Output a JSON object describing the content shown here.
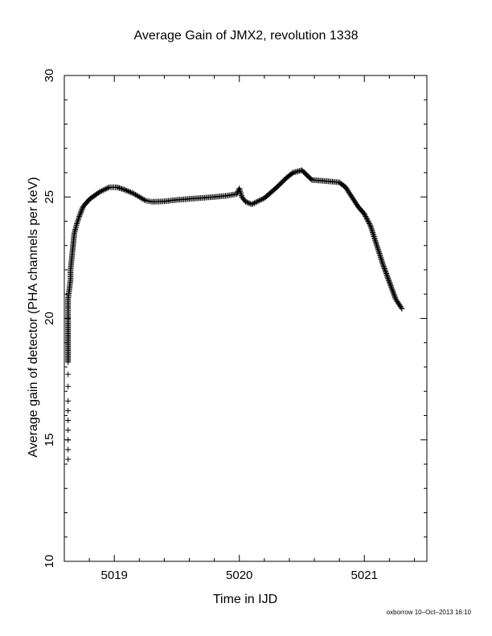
{
  "footer": "oxborrow 10–Oct–2013 16:10",
  "chart_data": {
    "type": "scatter",
    "title": "Average Gain of JMX2, revolution 1338",
    "xlabel": "Time in IJD",
    "ylabel": "Average gain of detector (PHA channels per keV)",
    "xlim": [
      5018.6,
      5021.5
    ],
    "ylim": [
      10,
      30
    ],
    "xticks": [
      5019,
      5020,
      5021
    ],
    "yticks": [
      10,
      15,
      20,
      25,
      30
    ],
    "x_tick_labels": [
      "5019",
      "5020",
      "5021"
    ],
    "y_tick_labels": [
      "10",
      "15",
      "20",
      "25",
      "30"
    ],
    "marker": "plus",
    "color": "#000000",
    "grid": false,
    "series": [
      {
        "x": [
          5018.63,
          5018.63,
          5018.63,
          5018.63,
          5018.63,
          5018.63,
          5018.63,
          5018.63,
          5018.63,
          5018.63,
          5018.63,
          5018.63,
          5018.63,
          5018.63,
          5018.64,
          5018.65,
          5018.65,
          5018.66,
          5018.67,
          5018.68,
          5018.7,
          5018.72,
          5018.75,
          5018.8,
          5018.88,
          5018.96,
          5019.02,
          5019.08,
          5019.15,
          5019.2,
          5019.25,
          5019.3,
          5019.4,
          5019.5,
          5019.6,
          5019.7,
          5019.8,
          5019.9,
          5019.98,
          5020.0,
          5020.02,
          5020.05,
          5020.1,
          5020.2,
          5020.3,
          5020.38,
          5020.43,
          5020.5,
          5020.58,
          5020.7,
          5020.8,
          5020.85,
          5020.9,
          5020.95,
          5021.0,
          5021.05,
          5021.1,
          5021.15,
          5021.2,
          5021.25,
          5021.3
        ],
        "y": [
          14.2,
          14.6,
          15.0,
          15.4,
          15.8,
          16.2,
          16.6,
          17.2,
          17.7,
          18.2,
          19.8,
          20.1,
          20.4,
          20.8,
          21.2,
          21.6,
          22.0,
          22.5,
          23.0,
          23.5,
          23.9,
          24.2,
          24.6,
          24.9,
          25.2,
          25.4,
          25.4,
          25.3,
          25.15,
          25.0,
          24.85,
          24.8,
          24.82,
          24.88,
          24.92,
          24.96,
          25.0,
          25.05,
          25.12,
          25.35,
          25.0,
          24.8,
          24.7,
          24.95,
          25.4,
          25.8,
          26.0,
          26.1,
          25.7,
          25.65,
          25.6,
          25.4,
          25.0,
          24.6,
          24.3,
          23.8,
          23.0,
          22.2,
          21.5,
          20.8,
          20.4
        ]
      }
    ]
  }
}
